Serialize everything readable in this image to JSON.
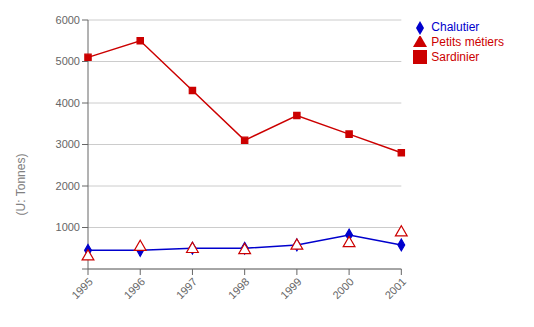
{
  "chart_data": {
    "type": "line",
    "ylabel": "(U: Tonnes)",
    "categories": [
      "1995",
      "1996",
      "1997",
      "1998",
      "1999",
      "2000",
      "2001"
    ],
    "series": [
      {
        "name": "Chalutier",
        "color": "#0000CD",
        "marker": "diamond",
        "line_style": "solid",
        "values": [
          450,
          450,
          500,
          500,
          580,
          820,
          580
        ]
      },
      {
        "name": "Sardinier",
        "color": "#CC0000",
        "marker": "square",
        "line_style": "solid",
        "values": [
          5100,
          5500,
          4300,
          3100,
          3700,
          3250,
          2800
        ]
      },
      {
        "name": "Petits métiers",
        "color": "#CC0000",
        "marker": "triangle",
        "line_style": "none",
        "values": [
          300,
          530,
          480,
          450,
          560,
          620,
          880
        ]
      }
    ],
    "ylim": [
      0,
      6000
    ],
    "yticks": [
      {
        "value": 0,
        "label": null
      },
      1000,
      2000,
      3000,
      4000,
      5000,
      6000
    ],
    "grid": true,
    "legend": "right"
  }
}
